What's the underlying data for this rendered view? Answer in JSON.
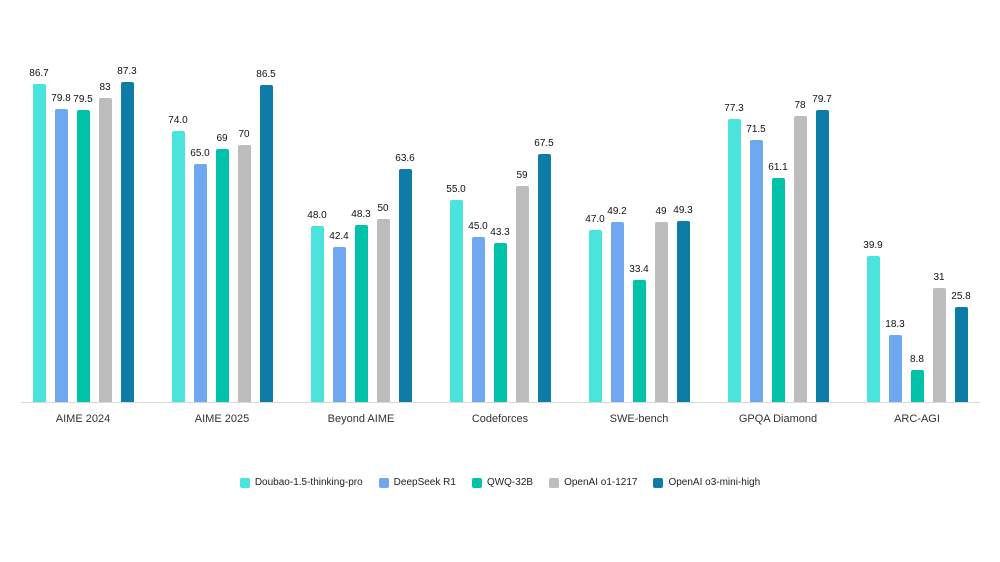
{
  "chart_data": {
    "type": "bar",
    "title": "",
    "categories": [
      "AIME 2024",
      "AIME 2025",
      "Beyond AIME",
      "Codeforces",
      "SWE-bench",
      "GPQA Diamond",
      "ARC-AGI"
    ],
    "series": [
      {
        "name": "Doubao-1.5-thinking-pro",
        "color": "#4BE4DC",
        "values": [
          86.7,
          74.0,
          48.0,
          55.0,
          47.0,
          77.3,
          39.9
        ],
        "labels": [
          "86.7",
          "74.0",
          "48.0",
          "55.0",
          "47.0",
          "77.3",
          "39.9"
        ]
      },
      {
        "name": "DeepSeek R1",
        "color": "#6FA8F0",
        "values": [
          79.8,
          65.0,
          42.4,
          45.0,
          49.2,
          71.5,
          18.3
        ],
        "labels": [
          "79.8",
          "65.0",
          "42.4",
          "45.0",
          "49.2",
          "71.5",
          "18.3"
        ]
      },
      {
        "name": "QWQ-32B",
        "color": "#00C3AA",
        "values": [
          79.5,
          69,
          48.3,
          43.3,
          33.4,
          61.1,
          8.8
        ],
        "labels": [
          "79.5",
          "69",
          "48.3",
          "43.3",
          "33.4",
          "61.1",
          "8.8"
        ]
      },
      {
        "name": "OpenAI o1-1217",
        "color": "#BDBDBD",
        "values": [
          83,
          70,
          50,
          59,
          49,
          78,
          31
        ],
        "labels": [
          "83",
          "70",
          "50",
          "59",
          "49",
          "78",
          "31"
        ]
      },
      {
        "name": "OpenAI o3-mini-high",
        "color": "#0D7CA6",
        "values": [
          87.3,
          86.5,
          63.6,
          67.5,
          49.3,
          79.7,
          25.8
        ],
        "labels": [
          "87.3",
          "86.5",
          "63.6",
          "67.5",
          "49.3",
          "79.7",
          "25.8"
        ]
      }
    ],
    "ylim": [
      0,
      90
    ],
    "grid": false,
    "legend_position": "bottom",
    "axis_color": "#D8D8D8",
    "background": "#FFFFFF"
  }
}
